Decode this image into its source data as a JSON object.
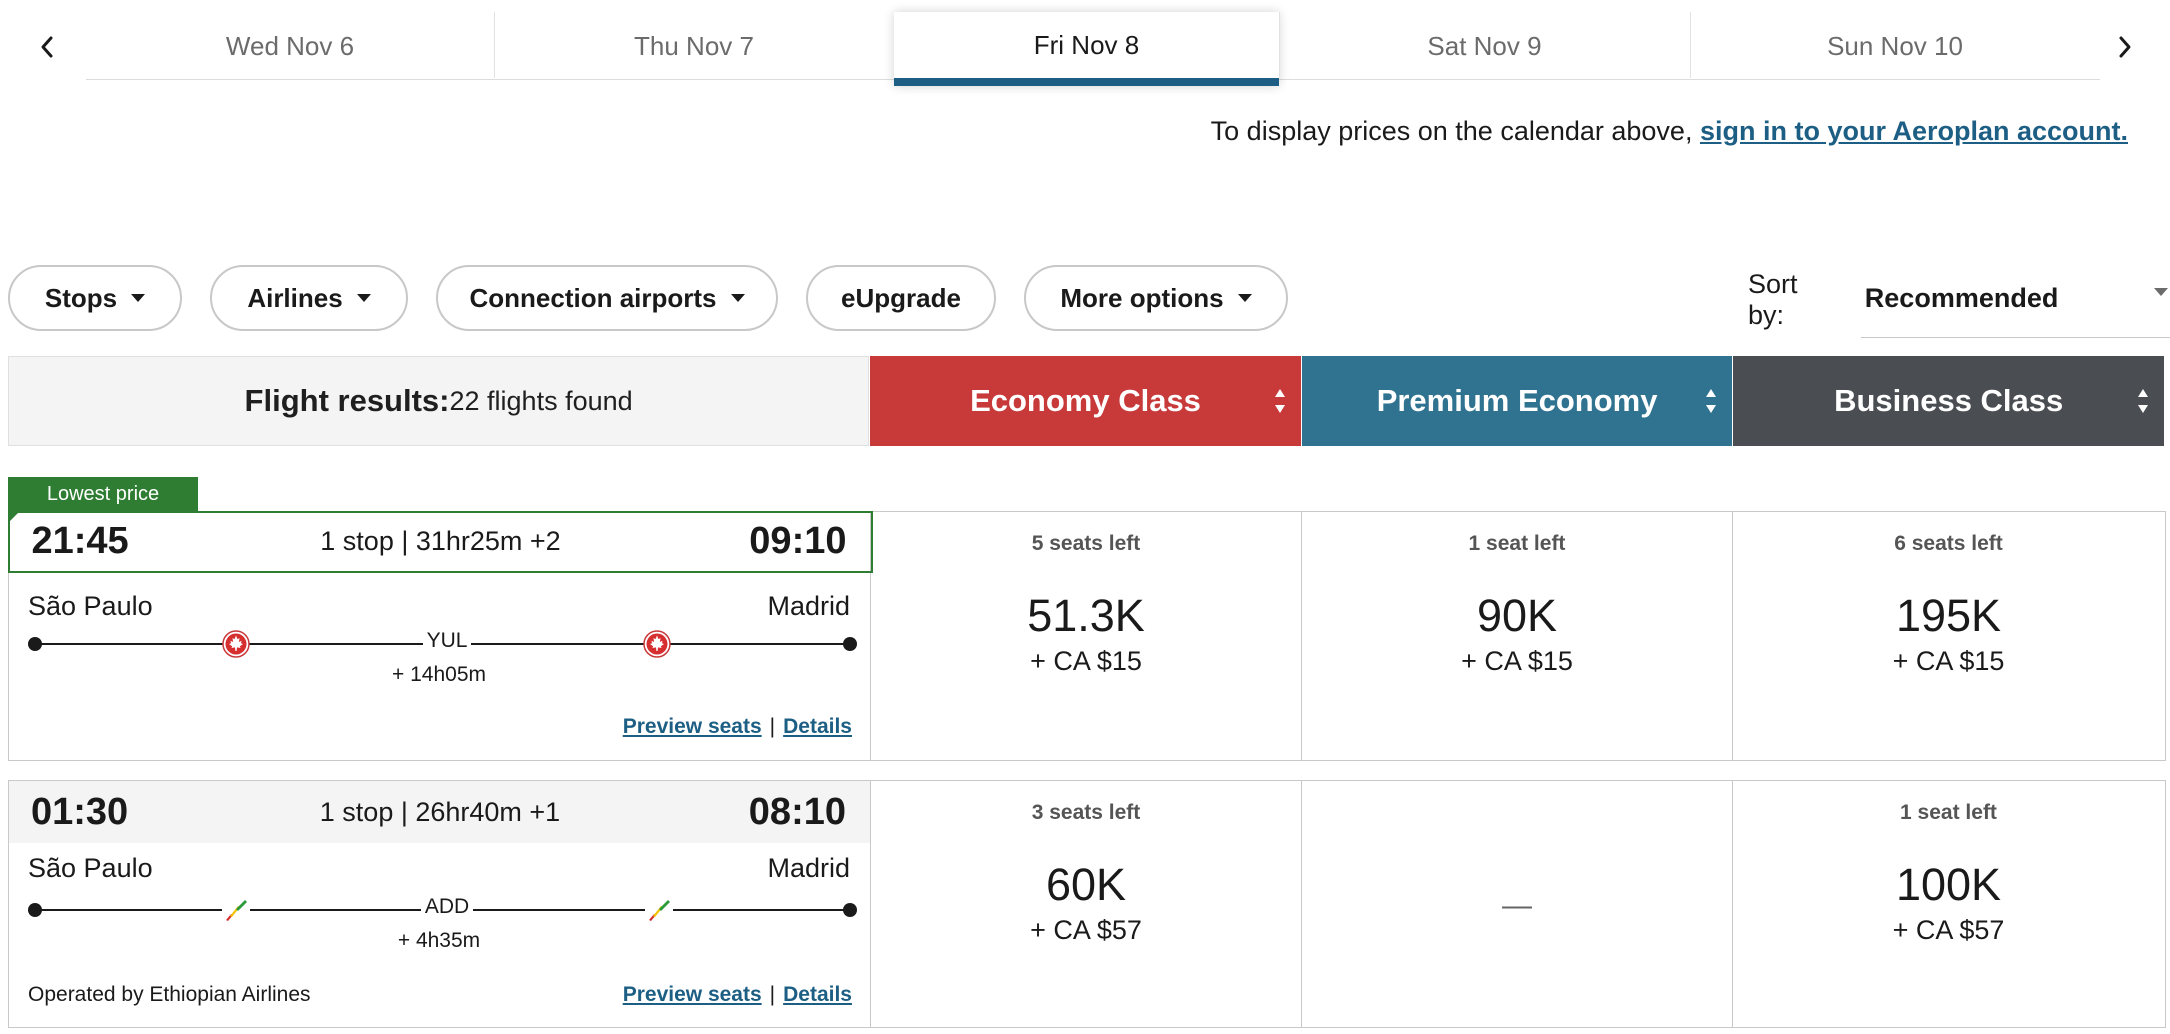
{
  "date_bar": {
    "prev_icon": "chevron-left-icon",
    "next_icon": "chevron-right-icon",
    "tabs": [
      {
        "label": "Wed Nov 6",
        "active": false
      },
      {
        "label": "Thu Nov 7",
        "active": false
      },
      {
        "label": "Fri Nov 8",
        "active": true
      },
      {
        "label": "Sat Nov 9",
        "active": false
      },
      {
        "label": "Sun Nov 10",
        "active": false
      }
    ],
    "active_underline_color": "#1d5f84"
  },
  "notice": {
    "text": "To display prices on the calendar above, ",
    "link": "sign in to your Aeroplan account."
  },
  "filters": {
    "stops": "Stops",
    "airlines": "Airlines",
    "connection_airports": "Connection airports",
    "eupgrade": "eUpgrade",
    "more_options": "More options"
  },
  "sort": {
    "label": "Sort by:",
    "value": "Recommended"
  },
  "results_header": {
    "title": "Flight results:",
    "count": "22 flights found",
    "cabins": [
      {
        "label": "Economy Class",
        "color": "#c8393a"
      },
      {
        "label": "Premium Economy",
        "color": "#2f7390"
      },
      {
        "label": "Business Class",
        "color": "#4a4e52"
      }
    ]
  },
  "flights": [
    {
      "badge": "Lowest price",
      "depart": "21:45",
      "summary": "1 stop | 31hr25m +2",
      "arrive": "09:10",
      "origin": "São Paulo",
      "destination": "Madrid",
      "via": "YUL",
      "layover": "+ 14h05m",
      "airline_logo": "air-canada-maple-leaf-icon",
      "operated_by": "",
      "links": {
        "preview": "Preview seats",
        "sep": "|",
        "details": "Details"
      },
      "fares": [
        {
          "seats": "5 seats left",
          "points": "51.3K",
          "cash": "+ CA $15"
        },
        {
          "seats": "1 seat left",
          "points": "90K",
          "cash": "+ CA $15"
        },
        {
          "seats": "6 seats left",
          "points": "195K",
          "cash": "+ CA $15"
        }
      ]
    },
    {
      "badge": "",
      "depart": "01:30",
      "summary": "1 stop | 26hr40m +1",
      "arrive": "08:10",
      "origin": "São Paulo",
      "destination": "Madrid",
      "via": "ADD",
      "layover": "+ 4h35m",
      "airline_logo": "ethiopian-airlines-icon",
      "operated_by": "Operated by Ethiopian Airlines",
      "links": {
        "preview": "Preview seats",
        "sep": "|",
        "details": "Details"
      },
      "fares": [
        {
          "seats": "3 seats left",
          "points": "60K",
          "cash": "+ CA $57"
        },
        {
          "seats": "",
          "points": "",
          "cash": "",
          "unavailable": "—"
        },
        {
          "seats": "1 seat left",
          "points": "100K",
          "cash": "+ CA $57"
        }
      ]
    }
  ]
}
